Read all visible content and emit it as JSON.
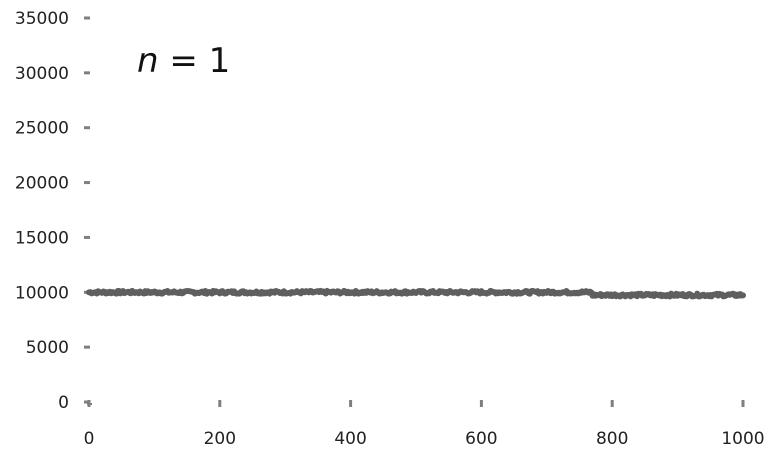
{
  "chart_data": {
    "type": "scatter",
    "title": "",
    "xlabel": "",
    "ylabel": "",
    "annotation": {
      "variable": "n",
      "rest": " = 1"
    },
    "xlim": [
      0,
      1000
    ],
    "ylim": [
      0,
      35000
    ],
    "x_ticks": [
      0,
      200,
      400,
      600,
      800,
      1000
    ],
    "y_ticks": [
      0,
      5000,
      10000,
      15000,
      20000,
      25000,
      30000,
      35000
    ],
    "grid": false,
    "legend": "none",
    "marker_color": "#5f5f5f",
    "axis_color": "#7f7f7f",
    "series": [
      {
        "x_start": 0,
        "x_end": 1000,
        "x_step": 2,
        "level_segments": [
          {
            "from": 0,
            "to": 770,
            "y": 10000
          },
          {
            "from": 770,
            "to": 1000,
            "y": 9750
          }
        ],
        "noise": 130
      }
    ]
  }
}
